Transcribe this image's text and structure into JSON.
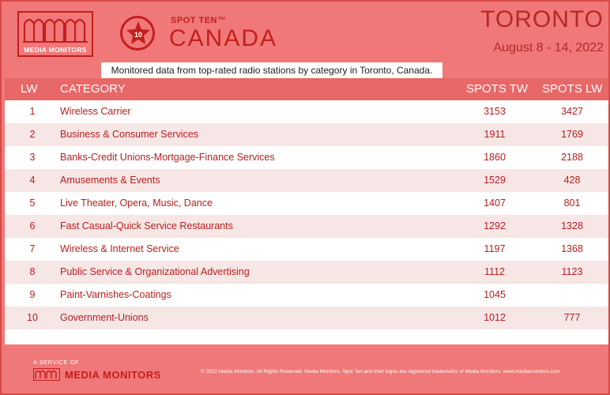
{
  "header": {
    "logo_text": "MEDIA MONITORS",
    "badge_number": "10",
    "spot_ten": "SPOT TEN™",
    "country": "CANADA",
    "city": "TORONTO",
    "dates": "August 8 - 14, 2022",
    "accent_color": "#c41e1e",
    "background_color": "#f07878"
  },
  "subtitle": "Monitored data from top-rated radio stations by category in Toronto, Canada.",
  "table": {
    "headers": {
      "lw": "LW",
      "category": "CATEGORY",
      "spots_tw": "SPOTS TW",
      "spots_lw": "SPOTS LW"
    },
    "rows": [
      {
        "lw": "1",
        "category": "Wireless Carrier",
        "spots_tw": "3153",
        "spots_lw": "3427"
      },
      {
        "lw": "2",
        "category": "Business & Consumer Services",
        "spots_tw": "1911",
        "spots_lw": "1769"
      },
      {
        "lw": "3",
        "category": "Banks-Credit Unions-Mortgage-Finance Services",
        "spots_tw": "1860",
        "spots_lw": "2188"
      },
      {
        "lw": "4",
        "category": "Amusements & Events",
        "spots_tw": "1529",
        "spots_lw": "428"
      },
      {
        "lw": "5",
        "category": "Live Theater, Opera, Music, Dance",
        "spots_tw": "1407",
        "spots_lw": "801"
      },
      {
        "lw": "6",
        "category": "Fast Casual-Quick Service Restaurants",
        "spots_tw": "1292",
        "spots_lw": "1328"
      },
      {
        "lw": "7",
        "category": "Wireless & Internet Service",
        "spots_tw": "1197",
        "spots_lw": "1368"
      },
      {
        "lw": "8",
        "category": "Public Service & Organizational Advertising",
        "spots_tw": "1112",
        "spots_lw": "1123"
      },
      {
        "lw": "9",
        "category": "Paint-Varnishes-Coatings",
        "spots_tw": "1045",
        "spots_lw": ""
      },
      {
        "lw": "10",
        "category": "Government-Unions",
        "spots_tw": "1012",
        "spots_lw": "777"
      }
    ]
  },
  "footer": {
    "service_label": "A SERVICE OF",
    "brand": "MEDIA MONITORS",
    "copyright": "© 2022 Media Monitors. All Rights Reserved. Media Monitors, Spot Ten and their logos are registered trademarks of Media Monitors. www.mediamonitors.com"
  }
}
